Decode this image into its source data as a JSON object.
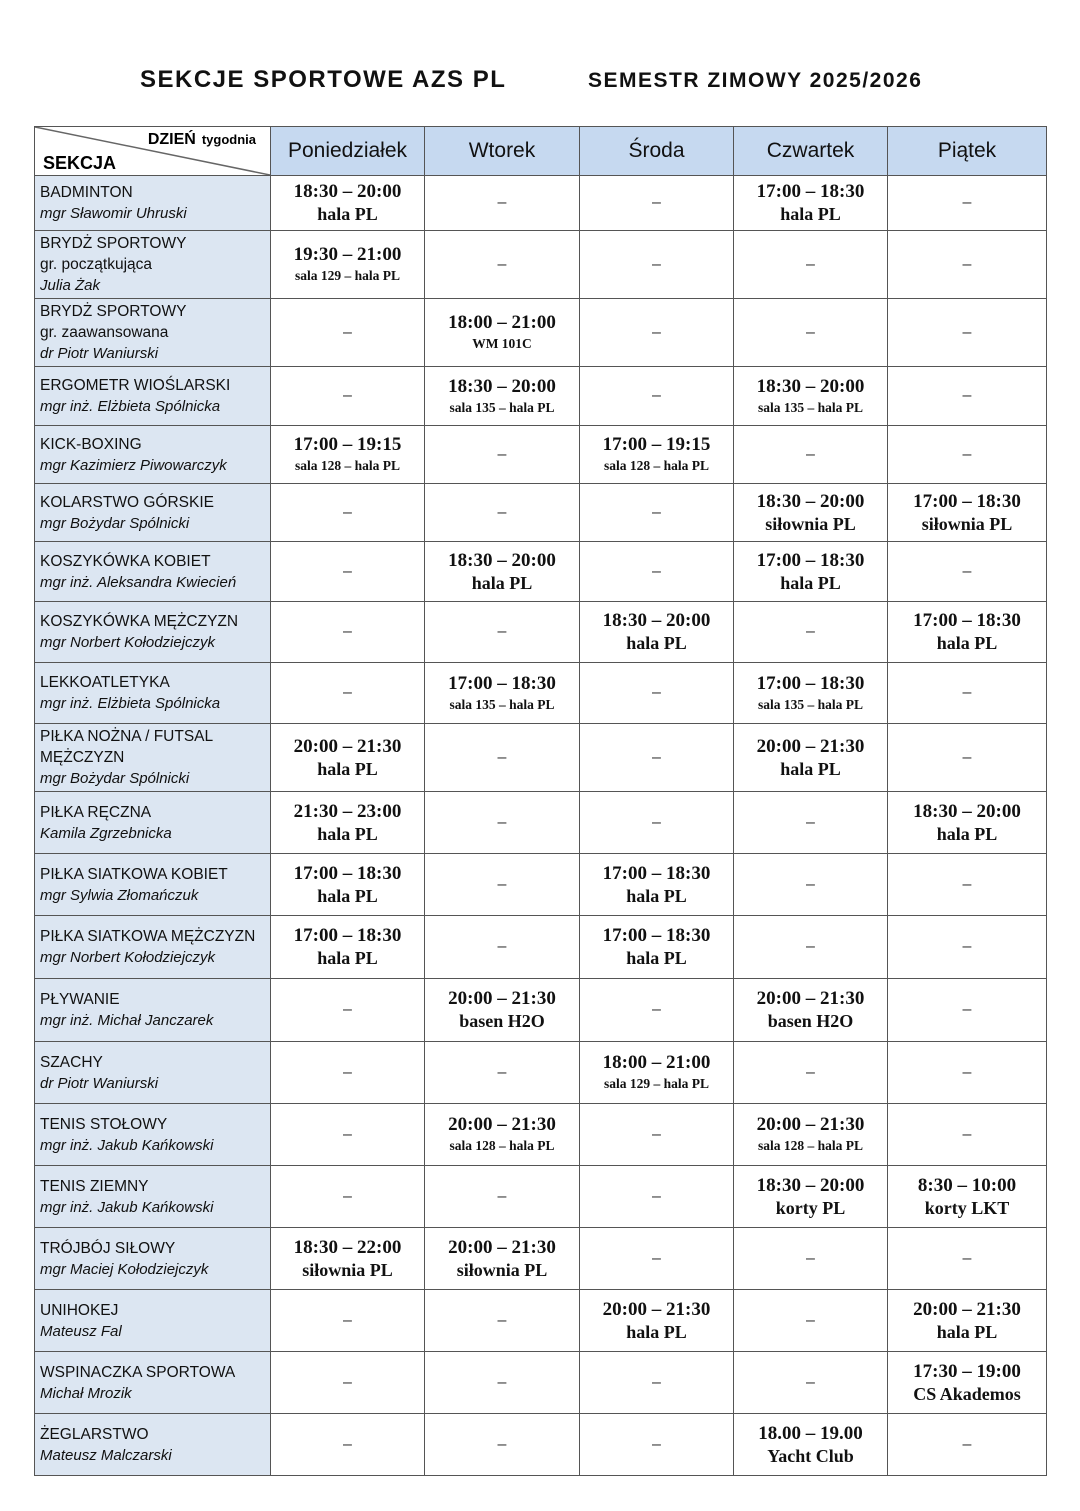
{
  "title": "SEKCJE  SPORTOWE AZS PL",
  "semester": "SEMESTR ZIMOWY 2025/2026",
  "header": {
    "corner_day": "DZIEŃ",
    "corner_week": "tygodnia",
    "corner_section": "SEKCJA",
    "days": [
      "Poniedziałek",
      "Wtorek",
      "Środa",
      "Czwartek",
      "Piątek"
    ]
  },
  "dash": "–",
  "colors": {
    "header_bg": "#c6d9f0",
    "section_bg": "#dce6f2"
  },
  "rows": [
    {
      "name": "BADMINTON",
      "instructor": "mgr Sławomir Uhruski",
      "cells": [
        {
          "time": "18:30 – 20:00",
          "place": "hala PL"
        },
        null,
        null,
        {
          "time": "17:00 – 18:30",
          "place": "hala PL"
        },
        null
      ]
    },
    {
      "name": "BRYDŻ SPORTOWY",
      "group": "gr. początkująca",
      "instructor": "Julia Żak",
      "cells": [
        {
          "time": "19:30 – 21:00",
          "place": "sala 129 – hala PL",
          "small": true
        },
        null,
        null,
        null,
        null
      ]
    },
    {
      "name": "BRYDŻ SPORTOWY",
      "group": "gr. zaawansowana",
      "instructor": "dr Piotr Waniurski",
      "cells": [
        null,
        {
          "time": "18:00 – 21:00",
          "place": "WM 101C",
          "small": true
        },
        null,
        null,
        null
      ]
    },
    {
      "name": "ERGOMETR WIOŚLARSKI",
      "instructor": "mgr inż. Elżbieta Spólnicka",
      "cells": [
        null,
        {
          "time": "18:30 – 20:00",
          "place": "sala 135 – hala PL",
          "small": true
        },
        null,
        {
          "time": "18:30 – 20:00",
          "place": "sala 135 – hala PL",
          "small": true
        },
        null
      ]
    },
    {
      "name": "KICK-BOXING",
      "instructor": "mgr Kazimierz Piwowarczyk",
      "cells": [
        {
          "time": "17:00 – 19:15",
          "place": "sala 128 – hala PL",
          "small": true
        },
        null,
        {
          "time": "17:00 – 19:15",
          "place": "sala 128 – hala PL",
          "small": true
        },
        null,
        null
      ]
    },
    {
      "name": "KOLARSTWO GÓRSKIE",
      "instructor": "mgr Bożydar Spólnicki",
      "cells": [
        null,
        null,
        null,
        {
          "time": "18:30 – 20:00",
          "place": "siłownia PL"
        },
        {
          "time": "17:00 – 18:30",
          "place": "siłownia PL"
        }
      ]
    },
    {
      "name": "KOSZYKÓWKA KOBIET",
      "instructor": "mgr inż. Aleksandra Kwiecień",
      "cells": [
        null,
        {
          "time": "18:30 – 20:00",
          "place": "hala PL"
        },
        null,
        {
          "time": "17:00 – 18:30",
          "place": "hala PL"
        },
        null
      ]
    },
    {
      "name": "KOSZYKÓWKA MĘŻCZYZN",
      "instructor": "mgr Norbert Kołodziejczyk",
      "cells": [
        null,
        null,
        {
          "time": "18:30 – 20:00",
          "place": "hala PL"
        },
        null,
        {
          "time": "17:00 – 18:30",
          "place": "hala PL"
        }
      ]
    },
    {
      "name": "LEKKOATLETYKA",
      "instructor": "mgr inż. Elżbieta Spólnicka",
      "cells": [
        null,
        {
          "time": "17:00 – 18:30",
          "place": "sala 135 – hala PL",
          "small": true
        },
        null,
        {
          "time": "17:00 – 18:30",
          "place": "sala 135 – hala PL",
          "small": true
        },
        null
      ]
    },
    {
      "name": "PIŁKA NOŻNA / FUTSAL MĘŻCZYZN",
      "instructor": "mgr Bożydar Spólnicki",
      "cells": [
        {
          "time": "20:00 – 21:30",
          "place": "hala PL"
        },
        null,
        null,
        {
          "time": "20:00 – 21:30",
          "place": "hala PL"
        },
        null
      ]
    },
    {
      "name": "PIŁKA RĘCZNA",
      "instructor": "Kamila Zgrzebnicka",
      "cells": [
        {
          "time": "21:30 – 23:00",
          "place": "hala PL"
        },
        null,
        null,
        null,
        {
          "time": "18:30 – 20:00",
          "place": "hala PL"
        }
      ]
    },
    {
      "name": "PIŁKA SIATKOWA KOBIET",
      "instructor": "mgr Sylwia Złomańczuk",
      "cells": [
        {
          "time": "17:00 – 18:30",
          "place": "hala PL"
        },
        null,
        {
          "time": "17:00 – 18:30",
          "place": "hala PL"
        },
        null,
        null
      ]
    },
    {
      "name": "PIŁKA SIATKOWA MĘŻCZYZN",
      "instructor": "mgr Norbert Kołodziejczyk",
      "cells": [
        {
          "time": "17:00 – 18:30",
          "place": "hala PL"
        },
        null,
        {
          "time": "17:00 – 18:30",
          "place": "hala PL"
        },
        null,
        null
      ]
    },
    {
      "name": "PŁYWANIE",
      "instructor": "mgr inż. Michał Janczarek",
      "cells": [
        null,
        {
          "time": "20:00 – 21:30",
          "place": "basen H2O"
        },
        null,
        {
          "time": "20:00 – 21:30",
          "place": "basen H2O"
        },
        null
      ]
    },
    {
      "name": "SZACHY",
      "instructor": "dr Piotr Waniurski",
      "cells": [
        null,
        null,
        {
          "time": "18:00 – 21:00",
          "place": "sala 129 – hala PL",
          "small": true
        },
        null,
        null
      ]
    },
    {
      "name": "TENIS STOŁOWY",
      "instructor": "mgr inż. Jakub Kańkowski",
      "cells": [
        null,
        {
          "time": "20:00 – 21:30",
          "place": "sala 128 – hala PL",
          "small": true
        },
        null,
        {
          "time": "20:00 – 21:30",
          "place": "sala 128 – hala PL",
          "small": true
        },
        null
      ]
    },
    {
      "name": "TENIS ZIEMNY",
      "instructor": "mgr inż. Jakub Kańkowski",
      "cells": [
        null,
        null,
        null,
        {
          "time": "18:30 – 20:00",
          "place": "korty PL"
        },
        {
          "time": "8:30 – 10:00",
          "place": "korty LKT"
        }
      ]
    },
    {
      "name": "TRÓJBÓJ SIŁOWY",
      "instructor": "mgr Maciej Kołodziejczyk",
      "cells": [
        {
          "time": "18:30 – 22:00",
          "place": "siłownia PL"
        },
        {
          "time": "20:00 – 21:30",
          "place": "siłownia PL"
        },
        null,
        null,
        null
      ]
    },
    {
      "name": "UNIHOKEJ",
      "instructor": "Mateusz Fal",
      "cells": [
        null,
        null,
        {
          "time": "20:00 – 21:30",
          "place": "hala PL"
        },
        null,
        {
          "time": "20:00 – 21:30",
          "place": "hala PL"
        }
      ]
    },
    {
      "name": "WSPINACZKA SPORTOWA",
      "instructor": "Michał Mrozik",
      "cells": [
        null,
        null,
        null,
        null,
        {
          "time": "17:30 – 19:00",
          "place": "CS Akademos"
        }
      ]
    },
    {
      "name": "ŻEGLARSTWO",
      "instructor": "Mateusz Malczarski",
      "cells": [
        null,
        null,
        null,
        {
          "time": "18.00 – 19.00",
          "place": "Yacht Club"
        },
        null
      ]
    }
  ]
}
